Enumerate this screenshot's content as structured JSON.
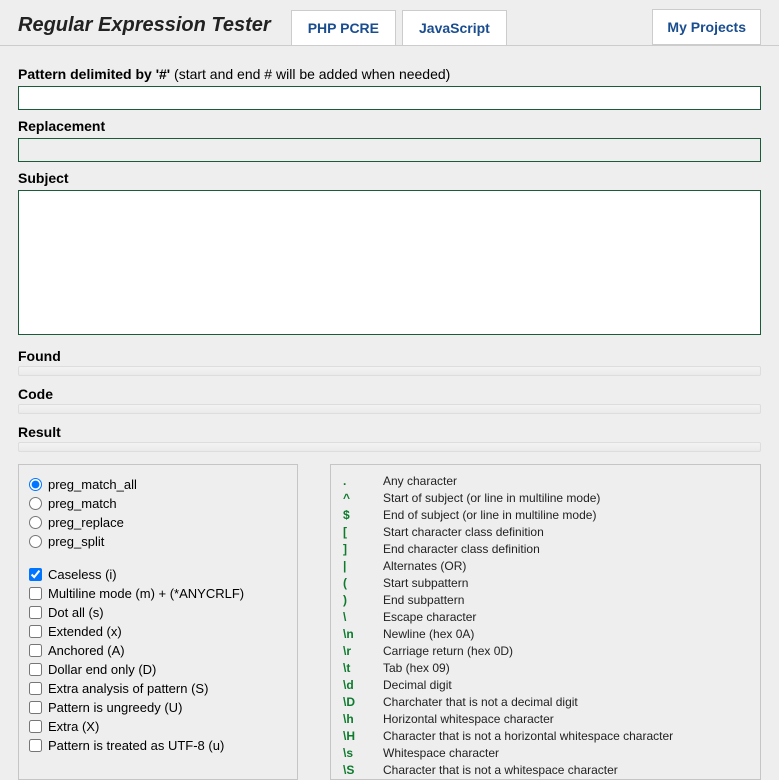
{
  "header": {
    "title": "Regular Expression Tester",
    "tabs": [
      {
        "label": "PHP PCRE"
      },
      {
        "label": "JavaScript"
      }
    ],
    "my_projects": "My Projects"
  },
  "fields": {
    "pattern_label": "Pattern delimited by '#'",
    "pattern_hint": " (start and end # will be added when needed)",
    "pattern_value": "",
    "replacement_label": "Replacement",
    "replacement_value": "",
    "subject_label": "Subject",
    "subject_value": "",
    "found_label": "Found",
    "code_label": "Code",
    "result_label": "Result"
  },
  "options": {
    "radios": [
      {
        "label": "preg_match_all",
        "checked": true
      },
      {
        "label": "preg_match",
        "checked": false
      },
      {
        "label": "preg_replace",
        "checked": false
      },
      {
        "label": "preg_split",
        "checked": false
      }
    ],
    "checks": [
      {
        "label": "Caseless (i)",
        "checked": true
      },
      {
        "label": "Multiline mode (m) + (*ANYCRLF)",
        "checked": false
      },
      {
        "label": "Dot all (s)",
        "checked": false
      },
      {
        "label": "Extended (x)",
        "checked": false
      },
      {
        "label": "Anchored (A)",
        "checked": false
      },
      {
        "label": "Dollar end only (D)",
        "checked": false
      },
      {
        "label": "Extra analysis of pattern (S)",
        "checked": false
      },
      {
        "label": "Pattern is ungreedy (U)",
        "checked": false
      },
      {
        "label": "Extra (X)",
        "checked": false
      },
      {
        "label": "Pattern is treated as UTF-8 (u)",
        "checked": false
      }
    ]
  },
  "reference": [
    {
      "sym": ".",
      "desc": "Any character"
    },
    {
      "sym": "^",
      "desc": "Start of subject (or line in multiline mode)"
    },
    {
      "sym": "$",
      "desc": "End of subject (or line in multiline mode)"
    },
    {
      "sym": "[",
      "desc": "Start character class definition"
    },
    {
      "sym": "]",
      "desc": "End character class definition"
    },
    {
      "sym": "|",
      "desc": "Alternates (OR)"
    },
    {
      "sym": "(",
      "desc": "Start subpattern"
    },
    {
      "sym": ")",
      "desc": "End subpattern"
    },
    {
      "sym": "\\",
      "desc": "Escape character"
    },
    {
      "sym": "\\n",
      "desc": "Newline (hex 0A)"
    },
    {
      "sym": "\\r",
      "desc": "Carriage return (hex 0D)"
    },
    {
      "sym": "\\t",
      "desc": "Tab (hex 09)"
    },
    {
      "sym": "\\d",
      "desc": "Decimal digit"
    },
    {
      "sym": "\\D",
      "desc": "Charchater that is not a decimal digit"
    },
    {
      "sym": "\\h",
      "desc": "Horizontal whitespace character"
    },
    {
      "sym": "\\H",
      "desc": "Character that is not a horizontal whitespace character"
    },
    {
      "sym": "\\s",
      "desc": "Whitespace character"
    },
    {
      "sym": "\\S",
      "desc": "Character that is not a whitespace character"
    }
  ]
}
